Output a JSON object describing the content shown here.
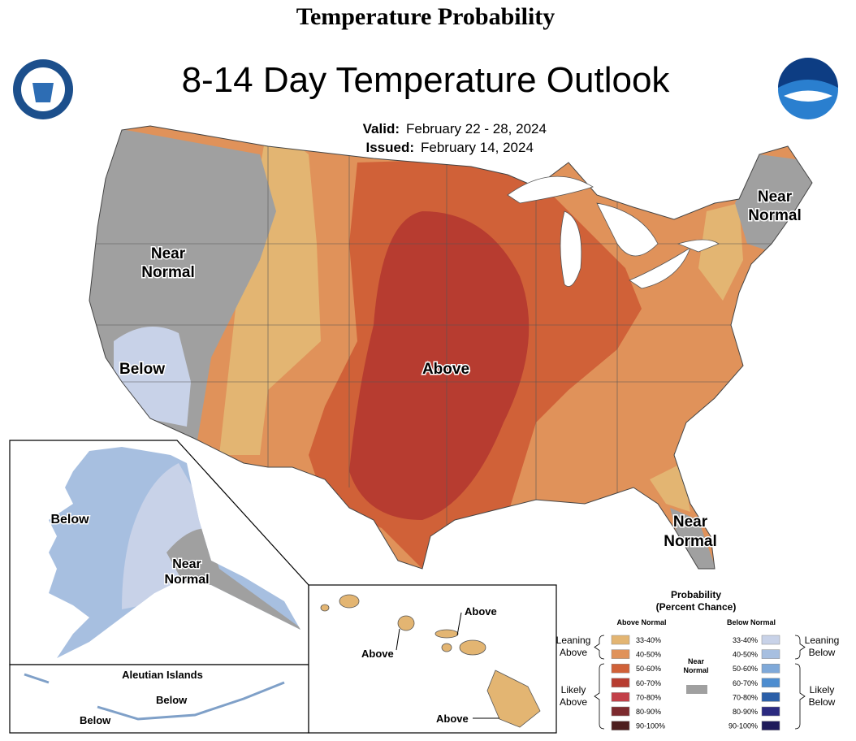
{
  "header": {
    "title": "Temperature Probability",
    "map_title": "8-14 Day Temperature Outlook",
    "valid_label": "Valid:",
    "valid": "February 22 - 28, 2024",
    "issued_label": "Issued:",
    "issued": "February 14, 2024"
  },
  "map_labels": {
    "conus": [
      [
        "Near",
        "Normal"
      ],
      [
        "Below"
      ],
      [
        "Above"
      ],
      [
        "Near",
        "Normal"
      ],
      [
        "Near",
        "Normal"
      ]
    ],
    "alaska": [
      [
        "Below"
      ],
      [
        "Near",
        "Normal"
      ]
    ],
    "aleutian_title": "Aleutian Islands",
    "aleutians": [
      "Below",
      "Below"
    ],
    "hawaii": [
      "Above",
      "Above",
      "Above"
    ]
  },
  "legend": {
    "title": [
      "Probability",
      "(Percent Chance)"
    ],
    "above_header": "Above Normal",
    "below_header": "Below Normal",
    "near": [
      "Near",
      "Normal"
    ],
    "near_color": "#a0a0a0",
    "above": [
      {
        "label": "33-40%",
        "color": "#e3b572"
      },
      {
        "label": "40-50%",
        "color": "#e0925a"
      },
      {
        "label": "50-60%",
        "color": "#d06138"
      },
      {
        "label": "60-70%",
        "color": "#b73c30"
      },
      {
        "label": "70-80%",
        "color": "#c23f48"
      },
      {
        "label": "80-90%",
        "color": "#7d2a2e"
      },
      {
        "label": "90-100%",
        "color": "#4d1e1e"
      }
    ],
    "below": [
      {
        "label": "33-40%",
        "color": "#c8d2e8"
      },
      {
        "label": "40-50%",
        "color": "#a7bfe0"
      },
      {
        "label": "50-60%",
        "color": "#7fa9d9"
      },
      {
        "label": "60-70%",
        "color": "#4d8dd0"
      },
      {
        "label": "70-80%",
        "color": "#2b5fa8"
      },
      {
        "label": "80-90%",
        "color": "#2b2a80"
      },
      {
        "label": "90-100%",
        "color": "#1e1a5a"
      }
    ],
    "above_groups": [
      [
        "Leaning",
        "Above"
      ],
      [
        "Likely",
        "Above"
      ]
    ],
    "below_groups": [
      [
        "Leaning",
        "Below"
      ],
      [
        "Likely",
        "Below"
      ]
    ]
  }
}
